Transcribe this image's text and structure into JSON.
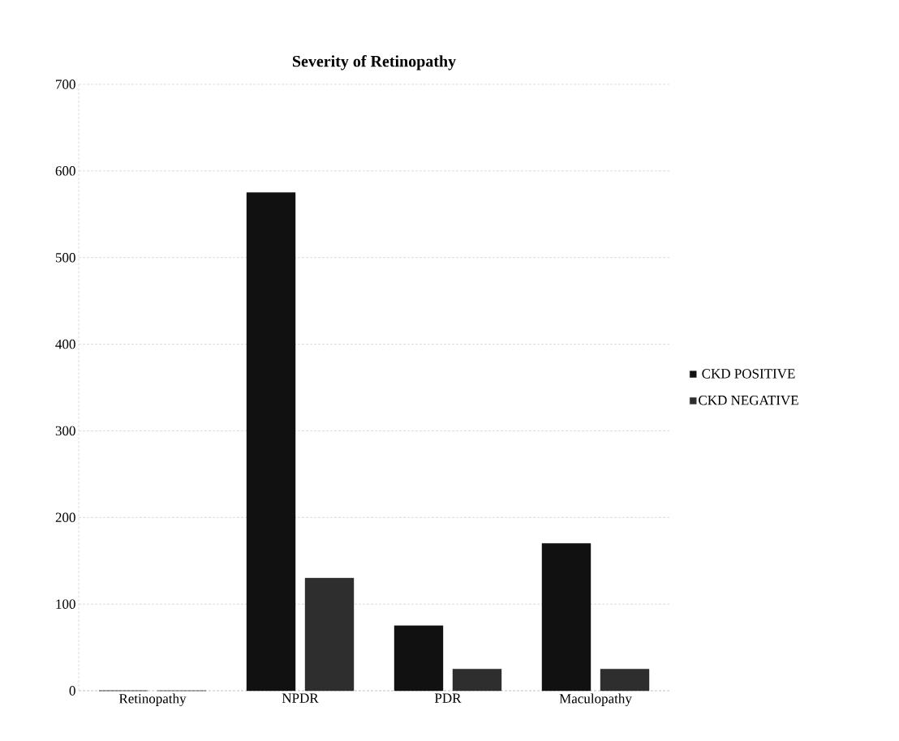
{
  "chart_data": {
    "type": "bar",
    "title": "Severity of Retinopathy",
    "categories": [
      "Retinopathy",
      "NPDR",
      "PDR",
      "Maculopathy"
    ],
    "series": [
      {
        "name": "CKD POSITIVE",
        "color": "#111111",
        "values": [
          0,
          575,
          75,
          170
        ]
      },
      {
        "name": "CKD NEGATIVE",
        "color": "#2e2e2e",
        "values": [
          0,
          130,
          25,
          25
        ]
      }
    ],
    "ylim": [
      0,
      700
    ],
    "yticks": [
      0,
      100,
      200,
      300,
      400,
      500,
      600,
      700
    ],
    "grid": "y",
    "legend": "right"
  }
}
